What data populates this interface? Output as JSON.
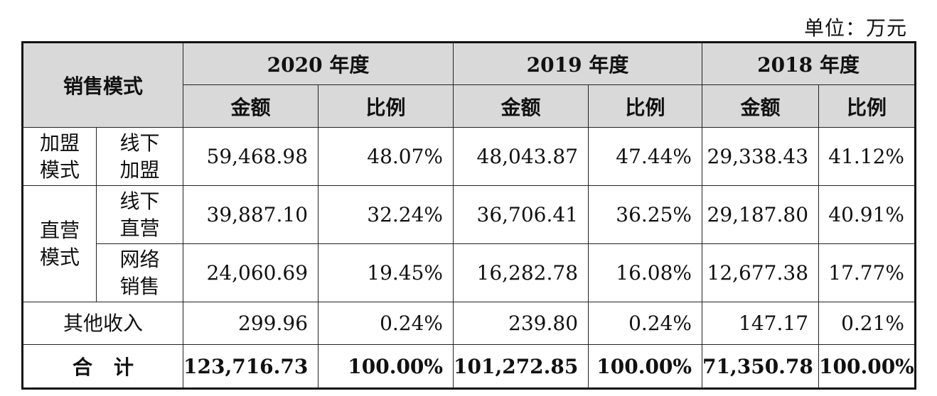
{
  "unit_label": "单位：万元",
  "header": {
    "mode_label": "销售模式",
    "years": [
      "2020 年度",
      "2019 年度",
      "2018 年度"
    ],
    "amount_label": "金额",
    "ratio_label": "比例"
  },
  "rows": [
    {
      "group": "加盟\n模式",
      "sub": "线下\n加盟",
      "values": [
        "59,468.98",
        "48.07%",
        "48,043.87",
        "47.44%",
        "29,338.43",
        "41.12%"
      ]
    },
    {
      "group": "直营\n模式",
      "sub": "线下\n直营",
      "values": [
        "39,887.10",
        "32.24%",
        "36,706.41",
        "36.25%",
        "29,187.80",
        "40.91%"
      ]
    },
    {
      "sub": "网络\n销售",
      "values": [
        "24,060.69",
        "19.45%",
        "16,282.78",
        "16.08%",
        "12,677.38",
        "17.77%"
      ]
    }
  ],
  "other": {
    "label": "其他收入",
    "values": [
      "299.96",
      "0.24%",
      "239.80",
      "0.24%",
      "147.17",
      "0.21%"
    ]
  },
  "total": {
    "label": "合计",
    "values": [
      "123,716.73",
      "100.00%",
      "101,272.85",
      "100.00%",
      "71,350.78",
      "100.00%"
    ]
  }
}
